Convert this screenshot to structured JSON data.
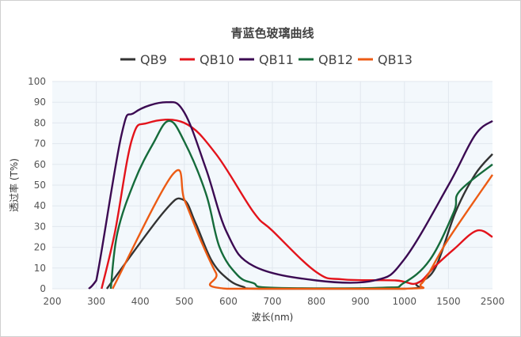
{
  "chart_data": {
    "type": "line",
    "title": "青蓝色玻璃曲线",
    "xlabel": "波长(nm)",
    "ylabel": "透过率 (T%)",
    "x_ticks": [
      "200",
      "300",
      "400",
      "500",
      "600",
      "700",
      "800",
      "900",
      "1000",
      "1500",
      "2500"
    ],
    "x_tick_values": [
      200,
      300,
      400,
      500,
      600,
      700,
      800,
      900,
      1000,
      1500,
      2500
    ],
    "x_scale": "categorical-piecewise (evenly spaced ticks)",
    "ylim": [
      0,
      100
    ],
    "y_ticks": [
      "0",
      "10",
      "20",
      "30",
      "40",
      "50",
      "60",
      "70",
      "80",
      "90",
      "100"
    ],
    "grid": true,
    "legend_position": "top",
    "series": [
      {
        "name": "QB9",
        "color": "#333333",
        "points": [
          [
            324,
            0
          ],
          [
            453,
            37
          ],
          [
            497,
            43
          ],
          [
            525,
            32
          ],
          [
            561,
            14
          ],
          [
            597,
            5
          ],
          [
            633,
            1
          ],
          [
            680,
            0
          ],
          [
            1000,
            0
          ],
          [
            1145,
            2.7
          ],
          [
            1350,
            10
          ],
          [
            1660,
            37
          ],
          [
            2100,
            55
          ],
          [
            2500,
            65
          ]
        ]
      },
      {
        "name": "QB10",
        "color": "#e3131b",
        "points": [
          [
            312,
            0
          ],
          [
            342,
            27
          ],
          [
            381,
            72
          ],
          [
            417,
            80
          ],
          [
            500,
            80
          ],
          [
            572,
            65
          ],
          [
            657,
            37
          ],
          [
            700,
            28
          ],
          [
            800,
            8
          ],
          [
            860,
            4.5
          ],
          [
            980,
            4
          ],
          [
            1145,
            2.7
          ],
          [
            1350,
            11
          ],
          [
            1620,
            19
          ],
          [
            2140,
            28
          ],
          [
            2500,
            25
          ]
        ]
      },
      {
        "name": "QB11",
        "color": "#3b0a52",
        "points": [
          [
            283,
            0
          ],
          [
            300,
            4
          ],
          [
            357,
            74
          ],
          [
            387,
            85
          ],
          [
            459,
            90
          ],
          [
            500,
            85
          ],
          [
            549,
            58
          ],
          [
            597,
            27
          ],
          [
            657,
            11
          ],
          [
            800,
            4
          ],
          [
            932,
            4
          ],
          [
            999,
            14
          ],
          [
            1500,
            50
          ],
          [
            2100,
            74
          ],
          [
            2500,
            81
          ]
        ]
      },
      {
        "name": "QB12",
        "color": "#156b3b",
        "points": [
          [
            333,
            0
          ],
          [
            348,
            27
          ],
          [
            387,
            52
          ],
          [
            429,
            70
          ],
          [
            465,
            81
          ],
          [
            500,
            71
          ],
          [
            549,
            46
          ],
          [
            580,
            20
          ],
          [
            621,
            6.5
          ],
          [
            657,
            2.7
          ],
          [
            700,
            0.5
          ],
          [
            950,
            0.5
          ],
          [
            998,
            2.7
          ],
          [
            1290,
            14
          ],
          [
            1620,
            37
          ],
          [
            1750,
            47
          ],
          [
            2500,
            60
          ]
        ]
      },
      {
        "name": "QB13",
        "color": "#ec5b14",
        "points": [
          [
            337,
            0
          ],
          [
            473,
            55
          ],
          [
            500,
            43
          ],
          [
            536,
            24
          ],
          [
            572,
            7.6
          ],
          [
            597,
            0
          ],
          [
            1000,
            0
          ],
          [
            1200,
            2.7
          ],
          [
            1500,
            24
          ],
          [
            2500,
            55
          ]
        ]
      }
    ]
  }
}
